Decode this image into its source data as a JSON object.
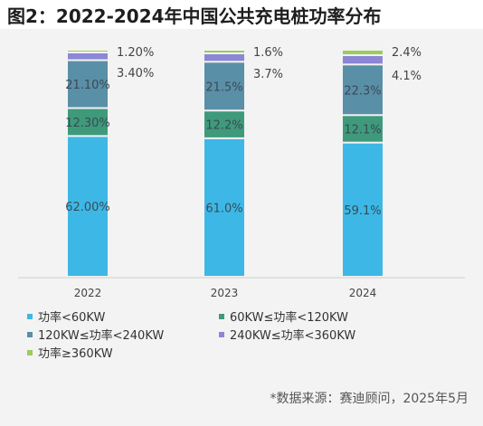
{
  "title": "图2：2022-2024年中国公共充电桩功率分布",
  "source": "*数据来源：赛迪顾问，2025年5月",
  "colors": {
    "s1": "#3db8e6",
    "s2": "#3e9a7a",
    "s3": "#5a8fa8",
    "s4": "#8b86d6",
    "s5": "#9acd5a",
    "label_inside": "#3a4a55",
    "label_outside": "#444444",
    "divider": "#ffffff",
    "axis": "#cfcfcf"
  },
  "chart_data": {
    "type": "bar",
    "stacked": true,
    "categories": [
      "2022",
      "2023",
      "2024"
    ],
    "series": [
      {
        "name": "功率<60KW",
        "color": "#3db8e6",
        "values": [
          62.0,
          61.0,
          59.1
        ],
        "labels": [
          "62.00%",
          "61.0%",
          "59.1%"
        ]
      },
      {
        "name": "60KW≤功率<120KW",
        "color": "#3e9a7a",
        "values": [
          12.3,
          12.2,
          12.1
        ],
        "labels": [
          "12.30%",
          "12.2%",
          "12.1%"
        ]
      },
      {
        "name": "120KW≤功率<240KW",
        "color": "#5a8fa8",
        "values": [
          21.1,
          21.5,
          22.3
        ],
        "labels": [
          "21.10%",
          "21.5%",
          "22.3%"
        ]
      },
      {
        "name": "240KW≤功率<360KW",
        "color": "#8b86d6",
        "values": [
          3.4,
          3.7,
          4.1
        ],
        "labels": [
          "3.40%",
          "3.7%",
          "4.1%"
        ]
      },
      {
        "name": "功率≥360KW",
        "color": "#9acd5a",
        "values": [
          1.2,
          1.6,
          2.4
        ],
        "labels": [
          "1.20%",
          "1.6%",
          "2.4%"
        ]
      }
    ],
    "ylim": [
      0,
      100
    ],
    "legend_position": "bottom"
  }
}
